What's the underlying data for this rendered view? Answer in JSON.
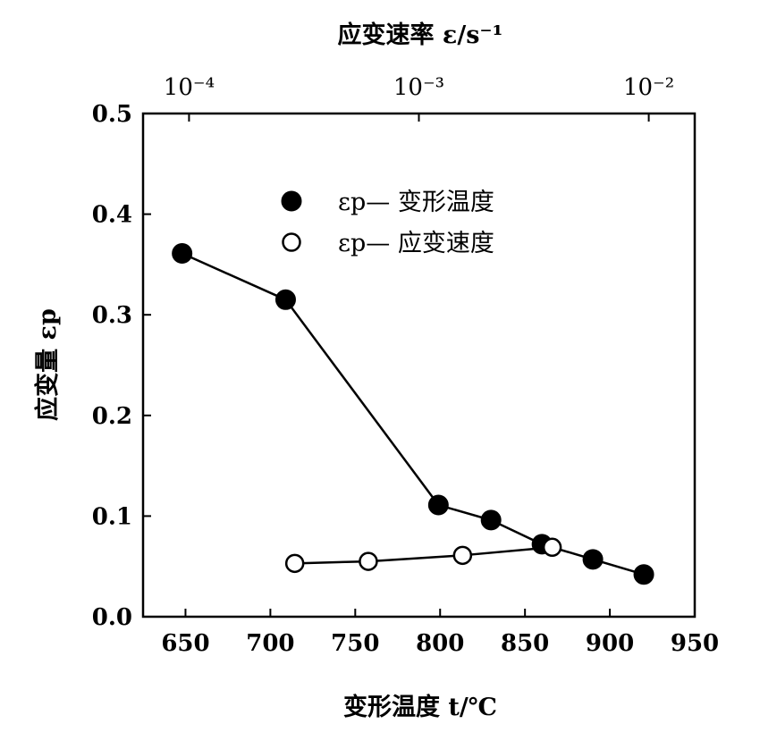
{
  "chart_data": {
    "type": "scatter",
    "title": "",
    "xlabel": "变形温度 t/℃",
    "ylabel": "应变量 εp",
    "top_xlabel": "应变速率 ε/s⁻¹",
    "xlim": [
      625,
      950
    ],
    "ylim": [
      0.0,
      0.5
    ],
    "x_ticks": [
      "650",
      "700",
      "750",
      "800",
      "850",
      "900",
      "950"
    ],
    "x_tick_values": [
      650,
      700,
      750,
      800,
      850,
      900,
      950
    ],
    "y_ticks": [
      "0.0",
      "0.1",
      "0.2",
      "0.3",
      "0.4",
      "0.5"
    ],
    "y_tick_values": [
      0.0,
      0.1,
      0.2,
      0.3,
      0.4,
      0.5
    ],
    "top_x_ticks": [
      "10⁻⁴",
      "10⁻³",
      "10⁻²"
    ],
    "top_x_scale": "log",
    "top_xlim_log10": [
      -4.2,
      -1.8
    ],
    "top_tick_log10": [
      -4,
      -3,
      -2
    ],
    "grid": false,
    "legend_position": "upper-center",
    "series": [
      {
        "name": "εp— 变形温度",
        "marker": "filled-circle",
        "axis": "bottom",
        "x": [
          648,
          709,
          799,
          830,
          860,
          890,
          920
        ],
        "y": [
          0.361,
          0.315,
          0.111,
          0.096,
          0.072,
          0.057,
          0.042
        ]
      },
      {
        "name": "εp— 应变速度",
        "marker": "open-circle",
        "axis": "top",
        "x": [
          -3.54,
          -3.22,
          -2.81,
          -2.42
        ],
        "y": [
          0.053,
          0.055,
          0.061,
          0.069
        ]
      }
    ]
  }
}
